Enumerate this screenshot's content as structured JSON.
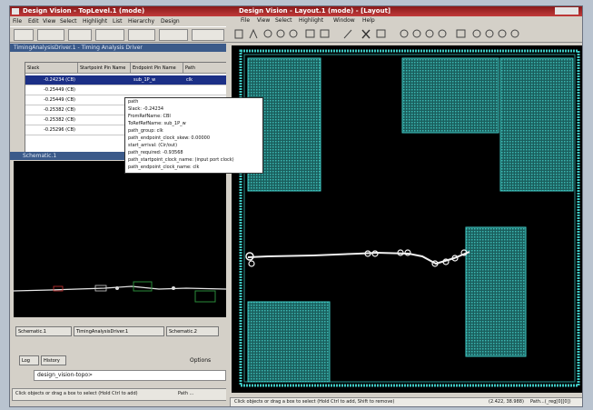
{
  "left_window": {
    "title": "Design Vision - TopLevel.1 (mode)",
    "menu": [
      "File",
      "Edit",
      "View",
      "Select",
      "Highlight",
      "List",
      "Hierarchy",
      "Design"
    ],
    "timing_window_title": "TimingAnalysisDriver.1 - Timing Analysis Driver",
    "table": {
      "headers": [
        "Slack",
        "Startpoint Pin Name",
        "Endpoint Pin Name",
        "Path"
      ],
      "rows": [
        [
          "-0.24234 (CB)",
          "",
          "sub_1P_w",
          "clk"
        ],
        [
          "-0.25449 (CB)",
          "",
          "",
          ""
        ],
        [
          "-0.25449 (CB)",
          "",
          "",
          ""
        ],
        [
          "-0.25382 (CB)",
          "",
          "",
          ""
        ],
        [
          "-0.25382 (CB)",
          "",
          "",
          ""
        ],
        [
          "-0.25296 (CB)",
          "",
          "",
          ""
        ]
      ]
    },
    "tooltip": [
      "path",
      "Slack: -0.24234",
      "FromRefName: CBI",
      "ToRefRefName: sub_1P_w",
      "path_group: clk",
      "path_endpoint_clock_skew: 0.00000",
      "start_arrival: (Cir/out)",
      "path_required: -0.93568",
      "path_startpoint_clock_name: (input port clock)",
      "path_endpoint_clock_name: clk"
    ],
    "schematic_title": "Schematic.1",
    "tabs": [
      "Schematic.1",
      "TimingAnalysisDriver.1",
      "Schematic.2"
    ],
    "console_tabs": [
      "Log",
      "History"
    ],
    "options_label": "Options",
    "command_value": "design_vision-topo>",
    "status_text": "Click objects or drag a box to select (Hold Ctrl to add)",
    "status_path": "Path ..."
  },
  "right_window": {
    "title": "Design Vision - Layout.1 (mode) - [Layout]",
    "menu": [
      "File",
      "View",
      "Select",
      "Highlight",
      "Window",
      "Help"
    ],
    "status_text": "Click objects or drag a box to select (Hold Ctrl to add, Shift to remove)",
    "coords": "(2.422, 38.988)",
    "path_label": "Path...(_reg[0][0])"
  },
  "colors": {
    "title_red": "#a02020",
    "selection_blue": "#1b2f86",
    "layout_cyan": "#37b8b2",
    "canvas_black": "#000000"
  }
}
